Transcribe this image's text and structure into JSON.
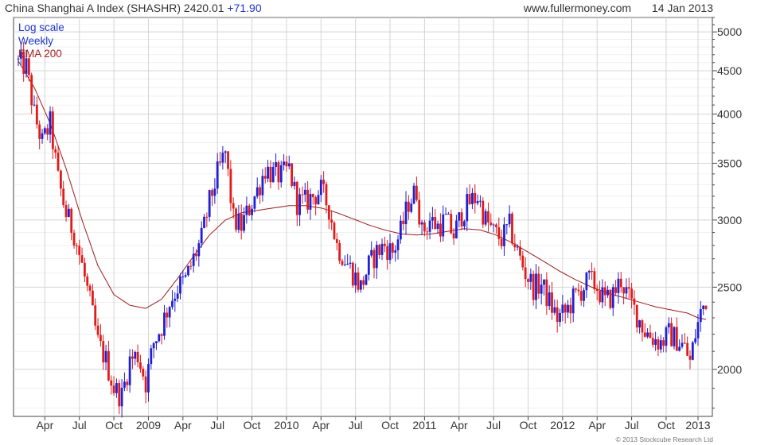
{
  "header": {
    "title": "China Shanghai A Index (SHASHR)",
    "last": "2420.01",
    "change": "+71.90",
    "site": "www.fullermoney.com",
    "date": "14 Jan 2013"
  },
  "legend": {
    "scale": "Log scale",
    "period": "Weekly",
    "ema": "EMA 200"
  },
  "copyright": "© 2013 Stockcube Research Ltd",
  "colors": {
    "up": "#1f1fd6",
    "down": "#e01b1b",
    "ema": "#9b1c1c",
    "grid": "#d4d4d4",
    "legend_scale": "#1f35c8",
    "legend_period": "#1f35c8",
    "legend_ema": "#a02020"
  },
  "chart_data": {
    "type": "candlestick",
    "title": "China Shanghai A Index (SHASHR)",
    "y_scale": "log",
    "ylim": [
      1760,
      5200
    ],
    "y_ticks": [
      2000,
      2500,
      3000,
      3500,
      4000,
      4500,
      5000
    ],
    "y_tick_labels": [
      "2000",
      "2500",
      "3000",
      "3500",
      "4000",
      "4500",
      "5000"
    ],
    "x_tick_labels": [
      "Apr",
      "Jul",
      "Oct",
      "2009",
      "Apr",
      "Jul",
      "Oct",
      "2010",
      "Apr",
      "Jul",
      "Oct",
      "2011",
      "Apr",
      "Jul",
      "Oct",
      "2012",
      "Apr",
      "Jul",
      "Oct",
      "2013"
    ],
    "x_tick_weeks": [
      10,
      23,
      36,
      49,
      62,
      75,
      88,
      101,
      114,
      127,
      140,
      153,
      166,
      179,
      192,
      205,
      218,
      231,
      244,
      256
    ],
    "weeks": 260,
    "close_path": [
      [
        0,
        4600
      ],
      [
        3,
        4550
      ],
      [
        6,
        4000
      ],
      [
        9,
        3700
      ],
      [
        12,
        3900
      ],
      [
        15,
        3350
      ],
      [
        18,
        3050
      ],
      [
        21,
        2900
      ],
      [
        24,
        2650
      ],
      [
        27,
        2400
      ],
      [
        30,
        2150
      ],
      [
        33,
        2050
      ],
      [
        36,
        1900
      ],
      [
        39,
        1860
      ],
      [
        42,
        2050
      ],
      [
        45,
        2080
      ],
      [
        48,
        1930
      ],
      [
        51,
        2150
      ],
      [
        54,
        2250
      ],
      [
        57,
        2400
      ],
      [
        60,
        2500
      ],
      [
        63,
        2550
      ],
      [
        66,
        2700
      ],
      [
        69,
        2850
      ],
      [
        72,
        3150
      ],
      [
        75,
        3400
      ],
      [
        78,
        3600
      ],
      [
        81,
        3000
      ],
      [
        84,
        2950
      ],
      [
        87,
        3100
      ],
      [
        90,
        3250
      ],
      [
        93,
        3450
      ],
      [
        96,
        3400
      ],
      [
        99,
        3380
      ],
      [
        102,
        3450
      ],
      [
        105,
        3150
      ],
      [
        108,
        3150
      ],
      [
        111,
        3200
      ],
      [
        114,
        3250
      ],
      [
        117,
        3100
      ],
      [
        120,
        2800
      ],
      [
        123,
        2700
      ],
      [
        126,
        2600
      ],
      [
        129,
        2500
      ],
      [
        132,
        2650
      ],
      [
        135,
        2750
      ],
      [
        138,
        2800
      ],
      [
        141,
        2750
      ],
      [
        144,
        2900
      ],
      [
        147,
        3150
      ],
      [
        150,
        3250
      ],
      [
        152,
        2900
      ],
      [
        155,
        3000
      ],
      [
        158,
        2950
      ],
      [
        161,
        3000
      ],
      [
        164,
        2880
      ],
      [
        167,
        3050
      ],
      [
        170,
        3150
      ],
      [
        173,
        3200
      ],
      [
        176,
        3000
      ],
      [
        179,
        2900
      ],
      [
        182,
        2850
      ],
      [
        185,
        2950
      ],
      [
        188,
        2750
      ],
      [
        191,
        2600
      ],
      [
        194,
        2500
      ],
      [
        197,
        2520
      ],
      [
        200,
        2400
      ],
      [
        203,
        2300
      ],
      [
        206,
        2330
      ],
      [
        209,
        2420
      ],
      [
        212,
        2480
      ],
      [
        215,
        2550
      ],
      [
        218,
        2500
      ],
      [
        221,
        2400
      ],
      [
        224,
        2450
      ],
      [
        227,
        2550
      ],
      [
        230,
        2420
      ],
      [
        233,
        2320
      ],
      [
        236,
        2220
      ],
      [
        239,
        2180
      ],
      [
        242,
        2150
      ],
      [
        245,
        2200
      ],
      [
        248,
        2170
      ],
      [
        251,
        2120
      ],
      [
        253,
        2040
      ],
      [
        255,
        2200
      ],
      [
        257,
        2330
      ],
      [
        259,
        2420
      ]
    ],
    "ema_path": [
      [
        0,
        4620
      ],
      [
        6,
        4300
      ],
      [
        12,
        3900
      ],
      [
        18,
        3450
      ],
      [
        24,
        3000
      ],
      [
        30,
        2650
      ],
      [
        36,
        2450
      ],
      [
        42,
        2380
      ],
      [
        48,
        2360
      ],
      [
        54,
        2420
      ],
      [
        60,
        2560
      ],
      [
        66,
        2720
      ],
      [
        72,
        2880
      ],
      [
        78,
        3000
      ],
      [
        84,
        3060
      ],
      [
        90,
        3080
      ],
      [
        96,
        3100
      ],
      [
        102,
        3120
      ],
      [
        108,
        3120
      ],
      [
        114,
        3100
      ],
      [
        120,
        3060
      ],
      [
        126,
        3010
      ],
      [
        132,
        2960
      ],
      [
        138,
        2920
      ],
      [
        144,
        2890
      ],
      [
        150,
        2880
      ],
      [
        156,
        2890
      ],
      [
        162,
        2910
      ],
      [
        168,
        2930
      ],
      [
        174,
        2920
      ],
      [
        180,
        2880
      ],
      [
        186,
        2820
      ],
      [
        192,
        2750
      ],
      [
        198,
        2680
      ],
      [
        204,
        2610
      ],
      [
        210,
        2550
      ],
      [
        216,
        2500
      ],
      [
        222,
        2460
      ],
      [
        228,
        2430
      ],
      [
        234,
        2400
      ],
      [
        240,
        2370
      ],
      [
        246,
        2350
      ],
      [
        252,
        2330
      ],
      [
        256,
        2300
      ],
      [
        259,
        2290
      ]
    ]
  }
}
